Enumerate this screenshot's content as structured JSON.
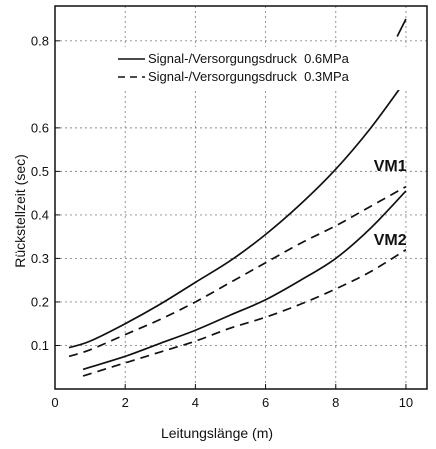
{
  "chart_data": {
    "type": "line",
    "title": "",
    "xlabel": "Leitungslänge (m)",
    "ylabel": "Rückstellzeit (sec)",
    "xlim": [
      0,
      10.6
    ],
    "ylim": [
      0,
      0.88
    ],
    "x_ticks": [
      0,
      2,
      4,
      6,
      8,
      10
    ],
    "x_tick_labels": [
      "0",
      "2",
      "4",
      "6",
      "8",
      "10"
    ],
    "y_ticks": [
      0.1,
      0.2,
      0.3,
      0.4,
      0.5,
      0.6,
      0.8
    ],
    "y_tick_labels": [
      "0.1",
      "0.2",
      "0.3",
      "0.4",
      "0.5",
      "0.6",
      "0.8"
    ],
    "grid": "dotted",
    "legend": {
      "position": "top-right",
      "entries": [
        {
          "label": "Signal-/Versorgungsdruck  0.6MPa",
          "style": "solid"
        },
        {
          "label": "Signal-/Versorgungsdruck  0.3MPa",
          "style": "dashed"
        }
      ]
    },
    "annotations": [
      {
        "text": "VM1",
        "x": 9.55,
        "y": 0.515
      },
      {
        "text": "VM2",
        "x": 9.55,
        "y": 0.345
      }
    ],
    "series": [
      {
        "group": "VM1",
        "style": "solid",
        "x": [
          0.4,
          1,
          2,
          3,
          4,
          5,
          6,
          7,
          8,
          9,
          10
        ],
        "y": [
          0.095,
          0.11,
          0.15,
          0.195,
          0.245,
          0.295,
          0.355,
          0.425,
          0.505,
          0.6,
          0.71
        ]
      },
      {
        "group": "VM1",
        "style": "dashed",
        "x": [
          0.4,
          1,
          2,
          3,
          4,
          5,
          6,
          7,
          8,
          9,
          10
        ],
        "y": [
          0.075,
          0.09,
          0.125,
          0.16,
          0.2,
          0.245,
          0.29,
          0.335,
          0.375,
          0.42,
          0.465
        ]
      },
      {
        "group": "VM2",
        "style": "solid",
        "x": [
          0.8,
          1,
          2,
          3,
          4,
          5,
          6,
          7,
          8,
          9,
          10
        ],
        "y": [
          0.045,
          0.05,
          0.075,
          0.105,
          0.135,
          0.17,
          0.205,
          0.25,
          0.3,
          0.37,
          0.455
        ]
      },
      {
        "group": "VM2",
        "style": "dashed",
        "x": [
          0.8,
          1,
          2,
          3,
          4,
          5,
          6,
          7,
          8,
          9,
          10
        ],
        "y": [
          0.03,
          0.035,
          0.06,
          0.085,
          0.11,
          0.14,
          0.165,
          0.195,
          0.23,
          0.27,
          0.32
        ]
      },
      {
        "group": "continuation",
        "style": "solid",
        "x": [
          9.75,
          10.0
        ],
        "y": [
          0.81,
          0.85
        ]
      }
    ]
  }
}
